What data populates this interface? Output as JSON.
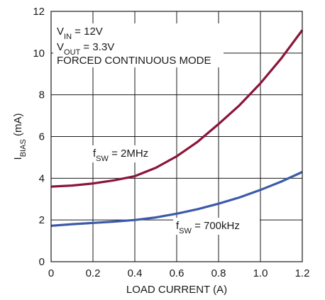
{
  "chart_data": {
    "type": "line",
    "xlabel": "LOAD CURRENT (A)",
    "ylabel_main": "I",
    "ylabel_sub": "BIAS",
    "ylabel_tail": " (mA)",
    "xlim": [
      0,
      1.2
    ],
    "ylim": [
      0,
      12
    ],
    "x_ticks": [
      "0",
      "0.2",
      "0.4",
      "0.6",
      "0.8",
      "1.0",
      "1.2"
    ],
    "y_ticks": [
      "0",
      "2",
      "4",
      "6",
      "8",
      "10",
      "12"
    ],
    "grid": true,
    "conditions": [
      {
        "main": "V",
        "sub": "IN",
        "tail": " = 12V"
      },
      {
        "main": "V",
        "sub": "OUT",
        "tail": " = 3.3V"
      },
      {
        "main": "FORCED CONTINUOUS MODE",
        "sub": "",
        "tail": ""
      }
    ],
    "series": [
      {
        "label_main": "f",
        "label_sub": "SW",
        "label_tail": " = 2MHz",
        "color": "#8b1538",
        "x": [
          0,
          0.1,
          0.2,
          0.3,
          0.4,
          0.5,
          0.6,
          0.7,
          0.8,
          0.9,
          1.0,
          1.1,
          1.2
        ],
        "y": [
          3.6,
          3.65,
          3.75,
          3.9,
          4.1,
          4.5,
          5.05,
          5.75,
          6.6,
          7.5,
          8.55,
          9.75,
          11.1
        ]
      },
      {
        "label_main": "f",
        "label_sub": "SW",
        "label_tail": " = 700kHz",
        "color": "#3b5aa8",
        "x": [
          0,
          0.1,
          0.2,
          0.3,
          0.4,
          0.5,
          0.6,
          0.7,
          0.8,
          0.9,
          1.0,
          1.1,
          1.2
        ],
        "y": [
          1.72,
          1.8,
          1.86,
          1.92,
          2.0,
          2.12,
          2.3,
          2.52,
          2.78,
          3.08,
          3.44,
          3.84,
          4.3
        ]
      }
    ]
  }
}
